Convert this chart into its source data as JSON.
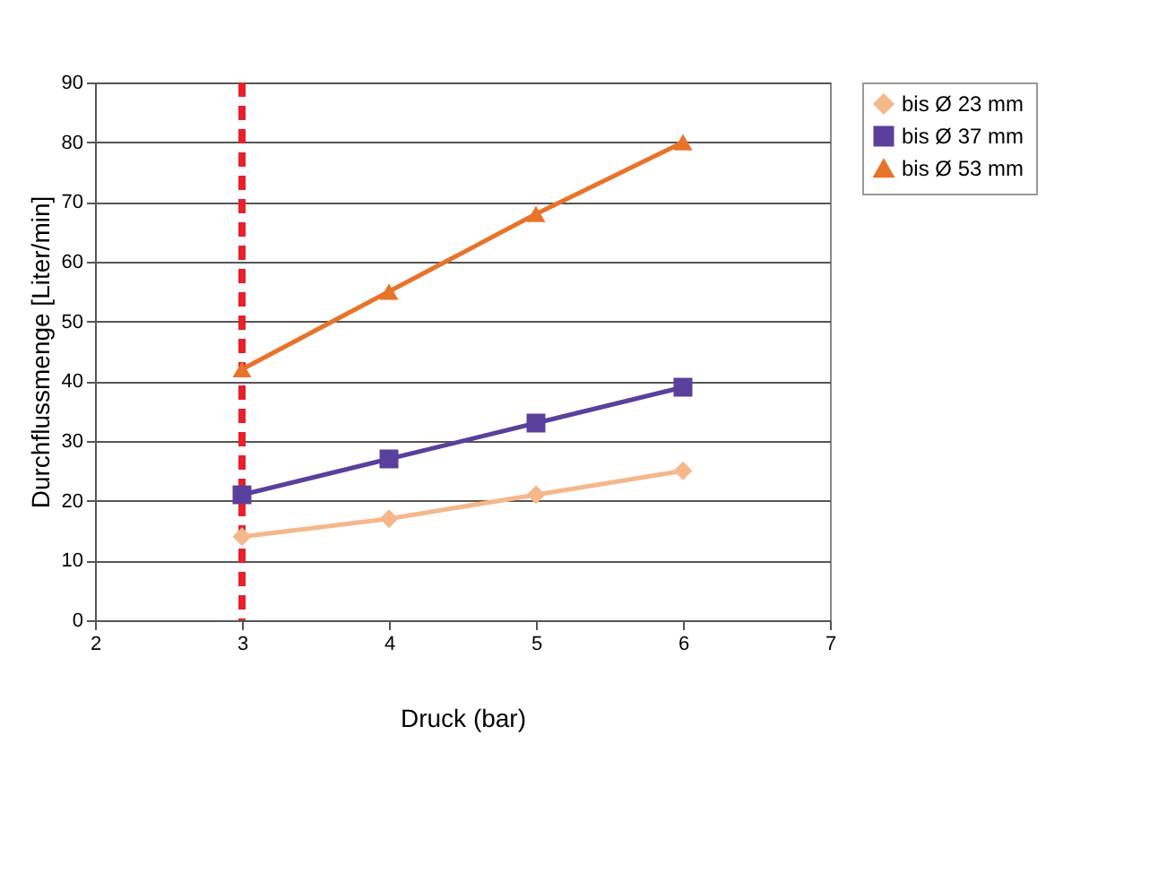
{
  "chart_data": {
    "type": "line",
    "xlabel": "Druck (bar)",
    "ylabel": "Durchflussmenge [Liter/min]",
    "x": [
      3,
      4,
      5,
      6
    ],
    "series": [
      {
        "name": "bis Ø 23 mm",
        "color": "#f5b88a",
        "marker": "diamond",
        "values": [
          14,
          17,
          21,
          25
        ]
      },
      {
        "name": "bis Ø 37 mm",
        "color": "#5a3f9c",
        "marker": "square",
        "values": [
          21,
          27,
          33,
          39
        ]
      },
      {
        "name": "bis Ø 53 mm",
        "color": "#e8732a",
        "marker": "triangle",
        "values": [
          42,
          55,
          68,
          80
        ]
      }
    ],
    "xlim": [
      2,
      7
    ],
    "xticks": [
      2,
      3,
      4,
      5,
      6,
      7
    ],
    "ylim": [
      0,
      90
    ],
    "yticks": [
      0,
      10,
      20,
      30,
      40,
      50,
      60,
      70,
      80,
      90
    ],
    "grid": "y",
    "legend": "right",
    "line_style": "solid",
    "ref_lines": [
      {
        "axis": "x",
        "value": 3,
        "color": "#e8202a",
        "line_style": "dashed"
      }
    ]
  }
}
